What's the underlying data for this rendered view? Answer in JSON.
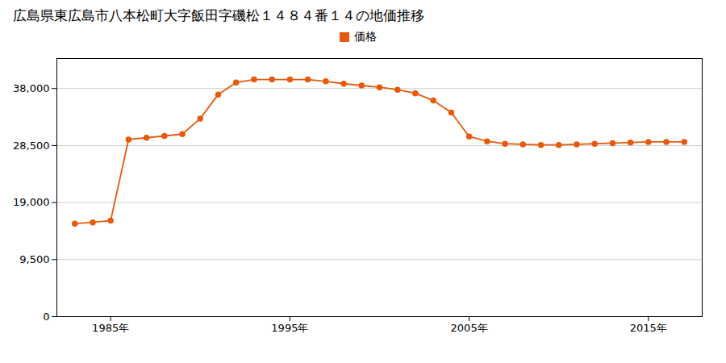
{
  "chart_data": {
    "type": "line",
    "title": "広島県東広島市八本松町大字飯田字磯松１４８４番１４の地価推移",
    "x": [
      1983,
      1984,
      1985,
      1986,
      1987,
      1988,
      1989,
      1990,
      1991,
      1992,
      1993,
      1994,
      1995,
      1996,
      1997,
      1998,
      1999,
      2000,
      2001,
      2002,
      2003,
      2004,
      2005,
      2006,
      2007,
      2008,
      2009,
      2010,
      2011,
      2012,
      2013,
      2014,
      2015,
      2016,
      2017
    ],
    "series": [
      {
        "name": "価格",
        "color": "#e8590c",
        "marker": "circle",
        "values": [
          15500,
          15700,
          16000,
          29500,
          29800,
          30100,
          30400,
          33000,
          37000,
          39000,
          39500,
          39500,
          39500,
          39500,
          39200,
          38800,
          38500,
          38200,
          37800,
          37200,
          36000,
          34000,
          30000,
          29200,
          28800,
          28700,
          28600,
          28600,
          28700,
          28800,
          28900,
          29000,
          29100,
          29100,
          29100
        ]
      }
    ],
    "xlim": [
      1982,
      2018
    ],
    "xticks": [
      {
        "value": 1985,
        "label": "1985年"
      },
      {
        "value": 1995,
        "label": "1995年"
      },
      {
        "value": 2005,
        "label": "2005年"
      },
      {
        "value": 2015,
        "label": "2015年"
      }
    ],
    "ylim": [
      0,
      43000
    ],
    "yticks": [
      0,
      {
        "value": 9500,
        "label": "9,500"
      },
      {
        "value": 19000,
        "label": "19,000"
      },
      {
        "value": 28500,
        "label": "28,500"
      },
      {
        "value": 38000,
        "label": "38,000"
      }
    ],
    "grid": "y",
    "legend": "top"
  }
}
